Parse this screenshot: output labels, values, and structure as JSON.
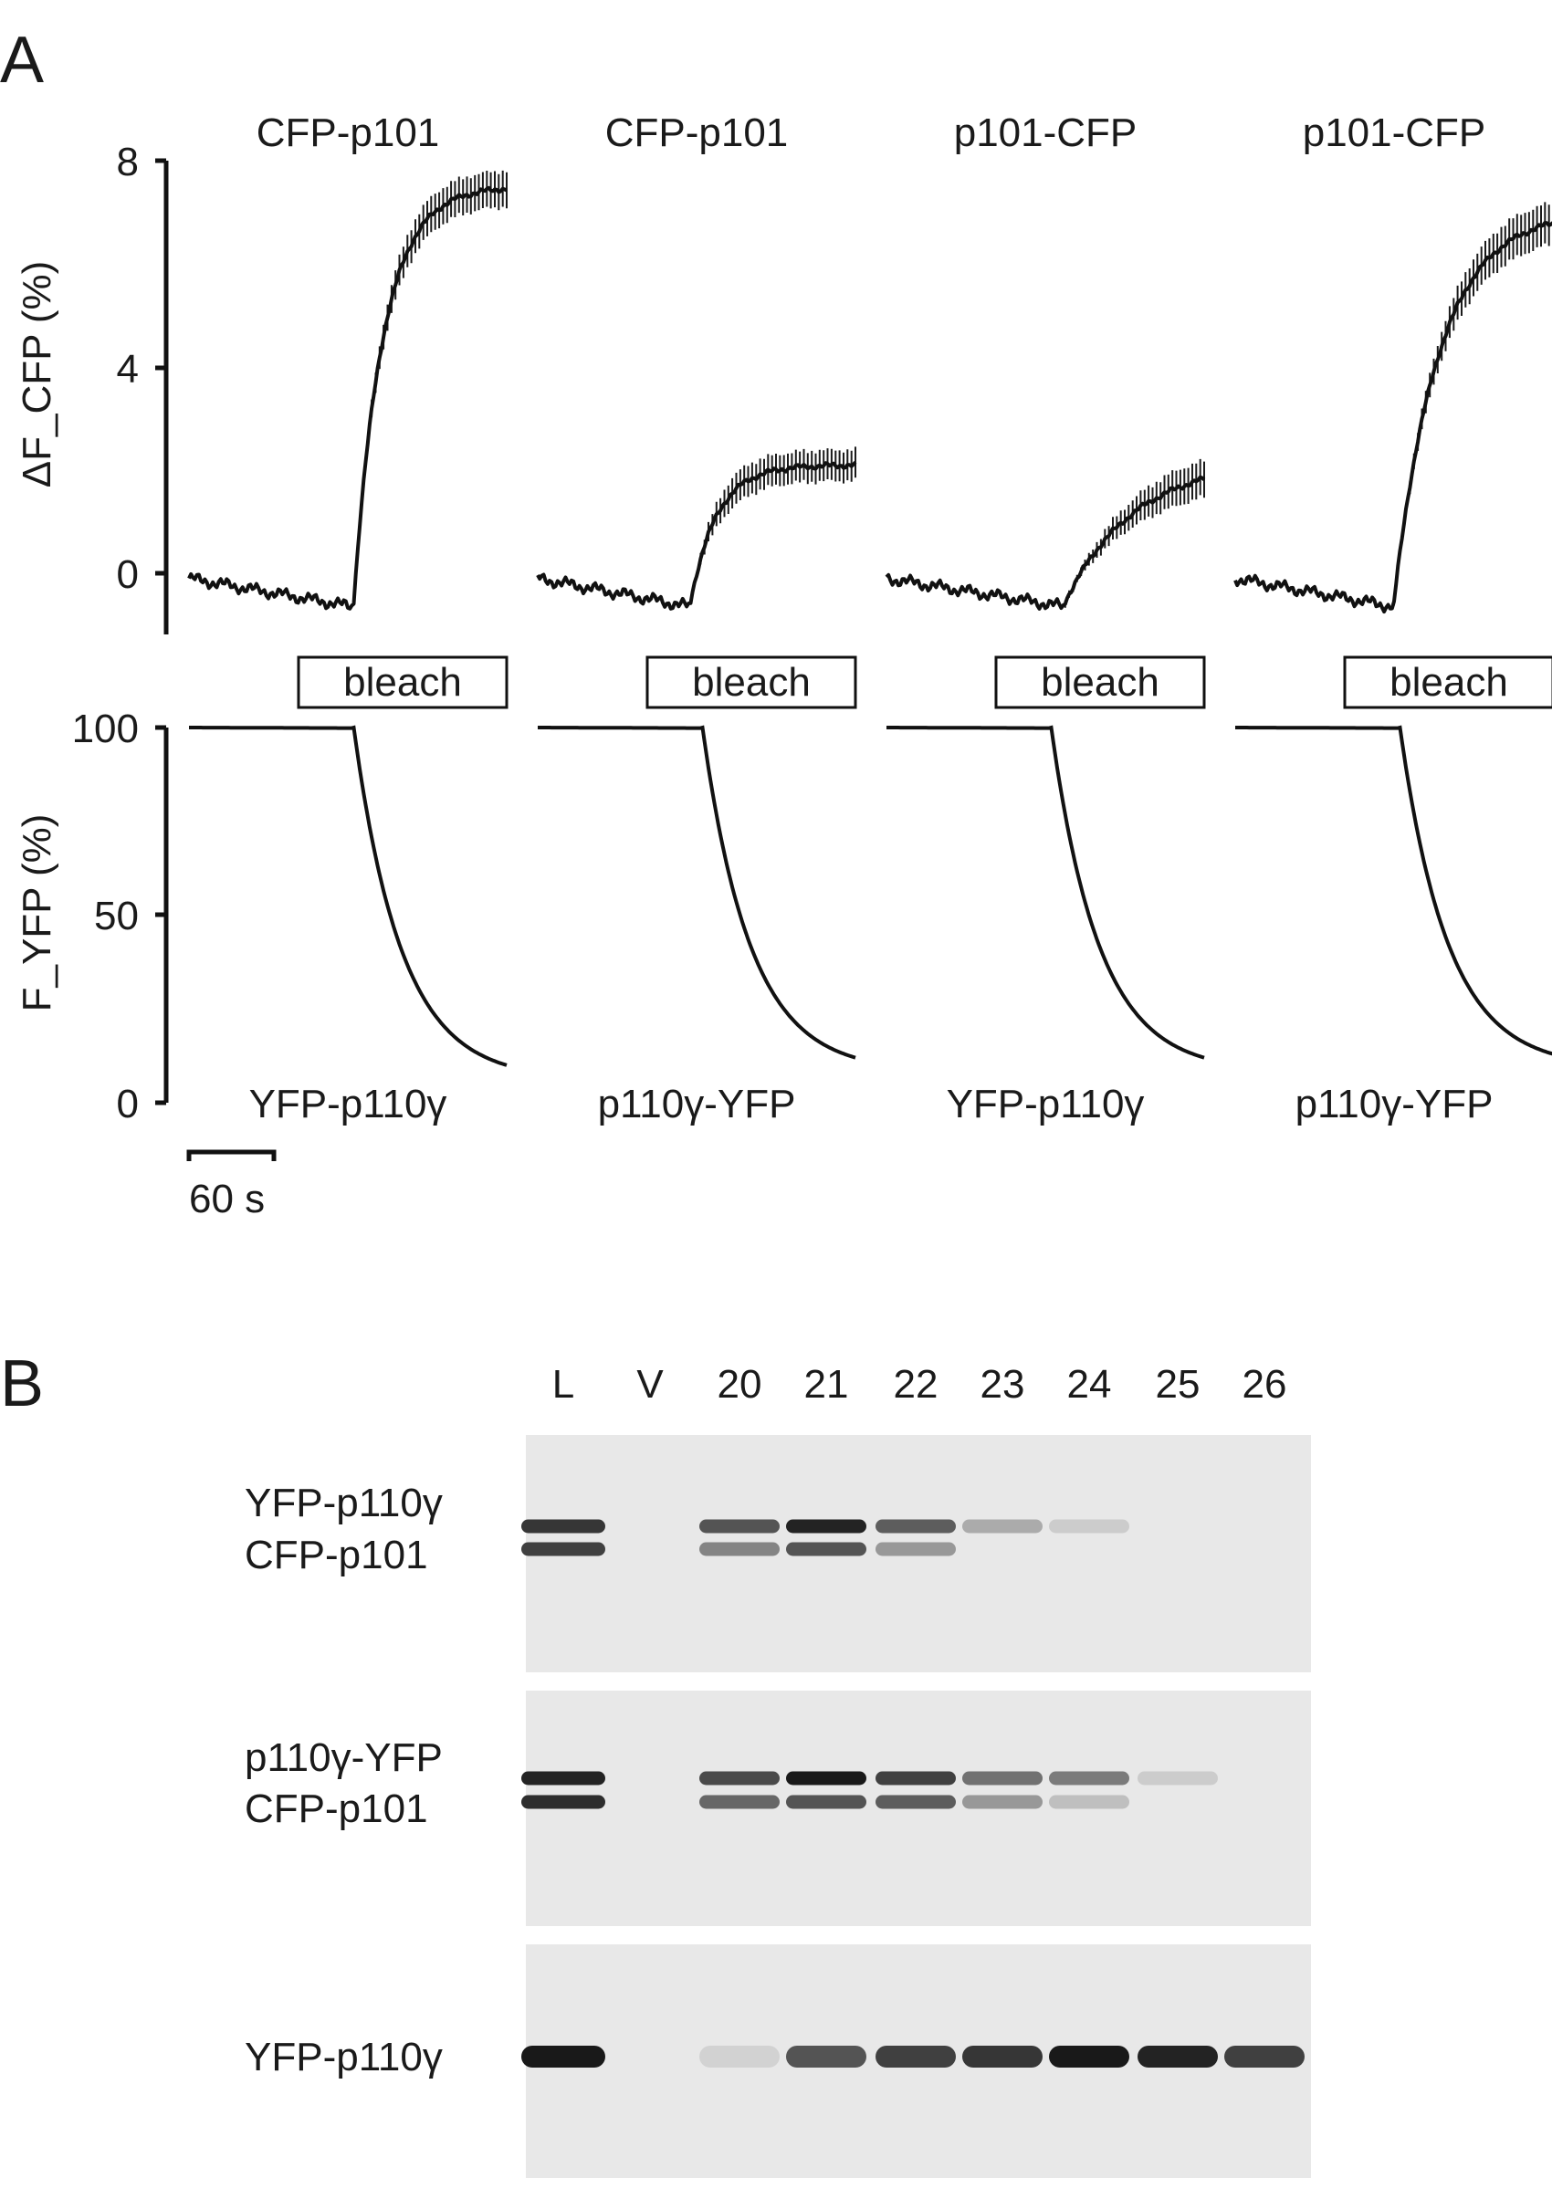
{
  "panels": {
    "a": {
      "label": "A"
    },
    "b": {
      "label": "B"
    }
  },
  "chart_data": [
    {
      "type": "line",
      "panel": "A",
      "row": "top",
      "ylabel": "ΔF_CFP (%)",
      "yticks": [
        0,
        4,
        8
      ],
      "ylim": [
        -1.2,
        8
      ],
      "xlim": [
        0,
        250
      ],
      "bleach_label": "bleach",
      "bleach_start_s": 130,
      "scale_bar": {
        "length_s": 60,
        "label": "60 s"
      },
      "traces": [
        {
          "label": "CFP-p101",
          "peak": 7.5,
          "start_ratio": 0.52,
          "rise": 0.19,
          "error": 0.35
        },
        {
          "label": "CFP-p101",
          "peak": 2.1,
          "start_ratio": 0.48,
          "rise": 0.16,
          "error": 0.3
        },
        {
          "label": "p101-CFP",
          "peak": 2.2,
          "start_ratio": 0.56,
          "rise": 0.5,
          "error": 0.35
        },
        {
          "label": "p101-CFP",
          "peak": 7.0,
          "start_ratio": 0.5,
          "rise": 0.28,
          "error": 0.4
        }
      ]
    },
    {
      "type": "line",
      "panel": "A",
      "row": "bottom",
      "ylabel": "F_YFP (%)",
      "yticks": [
        0,
        50,
        100
      ],
      "ylim": [
        0,
        100
      ],
      "xlim": [
        0,
        250
      ],
      "traces": [
        {
          "label": "YFP-p110γ",
          "start": 100,
          "end": 10,
          "start_ratio": 0.52
        },
        {
          "label": "p110γ-YFP",
          "start": 100,
          "end": 12,
          "start_ratio": 0.52
        },
        {
          "label": "YFP-p110γ",
          "start": 100,
          "end": 12,
          "start_ratio": 0.52
        },
        {
          "label": "p110γ-YFP",
          "start": 100,
          "end": 13,
          "start_ratio": 0.52
        }
      ]
    }
  ],
  "blot": {
    "lanes": [
      "L",
      "V",
      "20",
      "21",
      "22",
      "23",
      "24",
      "25",
      "26"
    ],
    "strips": [
      {
        "labels": [
          "YFP-p110γ",
          "CFP-p101"
        ],
        "bands": [
          [
            0.85,
            0.0,
            0.7,
            0.95,
            0.65,
            0.25,
            0.08,
            0.0,
            0.0
          ],
          [
            0.8,
            0.0,
            0.45,
            0.7,
            0.35,
            0.0,
            0.0,
            0.0,
            0.0
          ]
        ]
      },
      {
        "labels": [
          "p110γ-YFP",
          "CFP-p101"
        ],
        "bands": [
          [
            0.95,
            0.0,
            0.75,
            1.0,
            0.8,
            0.55,
            0.5,
            0.08,
            0.0
          ],
          [
            0.9,
            0.0,
            0.6,
            0.7,
            0.65,
            0.35,
            0.15,
            0.0,
            0.0
          ]
        ]
      },
      {
        "labels": [
          "YFP-p110γ"
        ],
        "bands": [
          [
            1.0,
            0.0,
            0.05,
            0.7,
            0.8,
            0.85,
            1.0,
            0.95,
            0.8
          ]
        ]
      }
    ]
  }
}
